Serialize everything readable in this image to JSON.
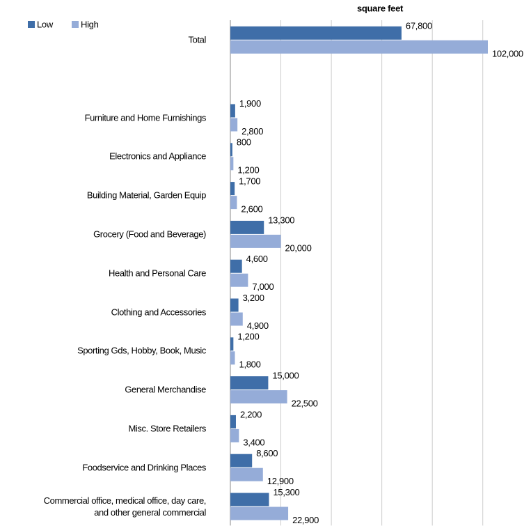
{
  "chart_data": {
    "type": "bar",
    "orientation": "horizontal",
    "title": "square feet",
    "categories": [
      "Total",
      null,
      "Furniture and Home Furnishings",
      "Electronics and Appliance",
      "Building Material, Garden Equip",
      "Grocery (Food and Beverage)",
      "Health and Personal Care",
      "Clothing and Accessories",
      "Sporting Gds, Hobby, Book, Music",
      "General Merchandise",
      "Misc. Store Retailers",
      "Foodservice and Drinking Places",
      "Commercial office, medical office, day care,\nand other general commercial"
    ],
    "series": [
      {
        "name": "Low",
        "color": "#3f6ea8",
        "values": [
          67800,
          null,
          1900,
          800,
          1700,
          13300,
          4600,
          3200,
          1200,
          15000,
          2200,
          8600,
          15300
        ],
        "value_labels": [
          "67,800",
          null,
          "1,900",
          "800",
          "1,700",
          "13,300",
          "4,600",
          "3,200",
          "1,200",
          "15,000",
          "2,200",
          "8,600",
          "15,300"
        ]
      },
      {
        "name": "High",
        "color": "#95acd8",
        "values": [
          102000,
          null,
          2800,
          1200,
          2600,
          20000,
          7000,
          4900,
          1800,
          22500,
          3400,
          12900,
          22900
        ],
        "value_labels": [
          "102,000",
          null,
          "2,800",
          "1,200",
          "2,600",
          "20,000",
          "7,000",
          "4,900",
          "1,800",
          "22,500",
          "3,400",
          "12,900",
          "22,900"
        ]
      }
    ],
    "xlim": [
      0,
      110000
    ],
    "gridlines": [
      0,
      20000,
      40000,
      60000,
      80000,
      100000
    ],
    "grid": true,
    "legend": "top-left"
  }
}
